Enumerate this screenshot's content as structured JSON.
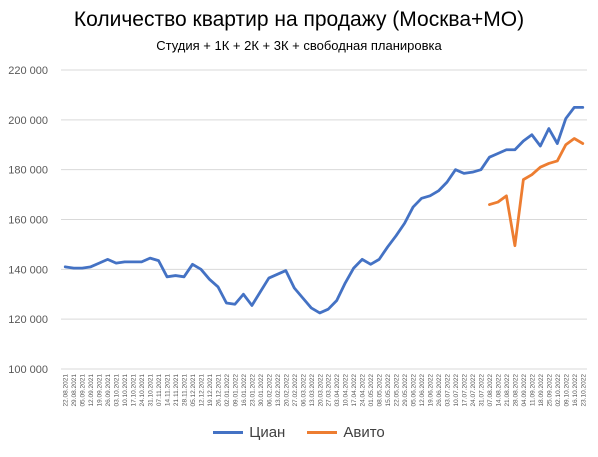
{
  "chart_data": {
    "type": "line",
    "title": "Количество квартир на продажу (Москва+МО)",
    "subtitle": "Студия + 1К + 2К + 3К + свободная планировка",
    "xlabel": "",
    "ylabel": "",
    "ylim": [
      100000,
      220000
    ],
    "yticks": [
      "100 000",
      "120 000",
      "140 000",
      "160 000",
      "180 000",
      "200 000",
      "220 000"
    ],
    "ytick_values": [
      100000,
      120000,
      140000,
      160000,
      180000,
      200000,
      220000
    ],
    "grid": true,
    "legend_position": "bottom",
    "x": [
      "22.08.2021",
      "29.08.2021",
      "05.09.2021",
      "12.09.2021",
      "19.09.2021",
      "26.09.2021",
      "03.10.2021",
      "10.10.2021",
      "17.10.2021",
      "24.10.2021",
      "31.10.2021",
      "07.11.2021",
      "14.11.2021",
      "21.11.2021",
      "28.11.2021",
      "05.12.2021",
      "12.12.2021",
      "19.12.2021",
      "26.12.2021",
      "02.01.2022",
      "09.01.2022",
      "16.01.2022",
      "23.01.2022",
      "30.01.2022",
      "06.02.2022",
      "13.02.2022",
      "20.02.2022",
      "27.02.2022",
      "06.03.2022",
      "13.03.2022",
      "20.03.2022",
      "27.03.2022",
      "03.04.2022",
      "10.04.2022",
      "17.04.2022",
      "24.04.2022",
      "01.05.2022",
      "08.05.2022",
      "15.05.2022",
      "22.05.2022",
      "29.05.2022",
      "05.06.2022",
      "12.06.2022",
      "19.06.2022",
      "26.06.2022",
      "03.07.2022",
      "10.07.2022",
      "17.07.2022",
      "24.07.2022",
      "31.07.2022",
      "07.08.2022",
      "14.08.2022",
      "21.08.2022",
      "28.08.2022",
      "04.09.2022",
      "11.09.2022",
      "18.09.2022",
      "25.09.2022",
      "02.10.2022",
      "09.10.2022",
      "16.10.2022",
      "23.10.2022"
    ],
    "series": [
      {
        "name": "Циан",
        "color": "#4472C4",
        "values": [
          141000,
          140500,
          140500,
          141000,
          142500,
          144000,
          142500,
          143000,
          143000,
          143000,
          144500,
          143500,
          137000,
          137500,
          137000,
          142000,
          140000,
          136000,
          133000,
          126500,
          126000,
          130000,
          125500,
          131000,
          136500,
          138000,
          139500,
          132500,
          128500,
          124500,
          122500,
          124000,
          127500,
          134500,
          140500,
          144000,
          142000,
          144000,
          149000,
          153500,
          158500,
          165000,
          168500,
          169500,
          171500,
          175000,
          180000,
          178500,
          179000,
          180000,
          185000,
          186500,
          188000,
          188000,
          191500,
          194000,
          189500,
          196500,
          190500,
          200500,
          205000,
          205000
        ]
      },
      {
        "name": "Авито",
        "color": "#ED7D31",
        "values": [
          null,
          null,
          null,
          null,
          null,
          null,
          null,
          null,
          null,
          null,
          null,
          null,
          null,
          null,
          null,
          null,
          null,
          null,
          null,
          null,
          null,
          null,
          null,
          null,
          null,
          null,
          null,
          null,
          null,
          null,
          null,
          null,
          null,
          null,
          null,
          null,
          null,
          null,
          null,
          null,
          null,
          null,
          null,
          null,
          null,
          null,
          null,
          null,
          null,
          null,
          166000,
          167000,
          169500,
          149500,
          176000,
          178000,
          181000,
          182500,
          183500,
          190000,
          192500,
          190500
        ]
      }
    ]
  }
}
